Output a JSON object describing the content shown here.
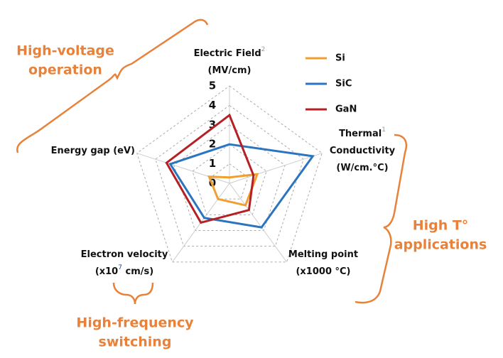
{
  "chart_data": {
    "type": "radar",
    "axes": [
      {
        "lines": [
          [
            "Electric Field",
            "2"
          ],
          [
            "(MV/cm)"
          ]
        ]
      },
      {
        "lines": [
          [
            "Thermal",
            "1"
          ],
          [
            "Conductivity"
          ],
          [
            "(W/cm.°C)"
          ]
        ]
      },
      {
        "lines": [
          [
            "Melting point"
          ],
          [
            "(x1000 °C)"
          ]
        ]
      },
      {
        "lines": [
          [
            "Electron velocity"
          ],
          [
            "(x10",
            "7",
            " cm/s)"
          ]
        ]
      },
      {
        "lines": [
          [
            "Energy gap (eV)"
          ]
        ]
      }
    ],
    "rlim": [
      0,
      5
    ],
    "rticks": [
      0,
      1,
      2,
      3,
      4,
      5
    ],
    "grid": true,
    "series": [
      {
        "name": "Si",
        "color": "#f0a030",
        "values": [
          0.3,
          1.5,
          1.4,
          1.0,
          1.1
        ]
      },
      {
        "name": "SiC",
        "color": "#2a74c0",
        "values": [
          2.0,
          4.5,
          2.8,
          2.2,
          3.2
        ]
      },
      {
        "name": "GaN",
        "color": "#b52025",
        "values": [
          3.5,
          1.3,
          1.7,
          2.5,
          3.4
        ]
      }
    ],
    "annotations": [
      {
        "lines": [
          "High-voltage",
          "operation"
        ]
      },
      {
        "lines": [
          "High T°",
          "applications"
        ]
      },
      {
        "lines": [
          "High-frequency",
          "switching"
        ]
      }
    ]
  }
}
